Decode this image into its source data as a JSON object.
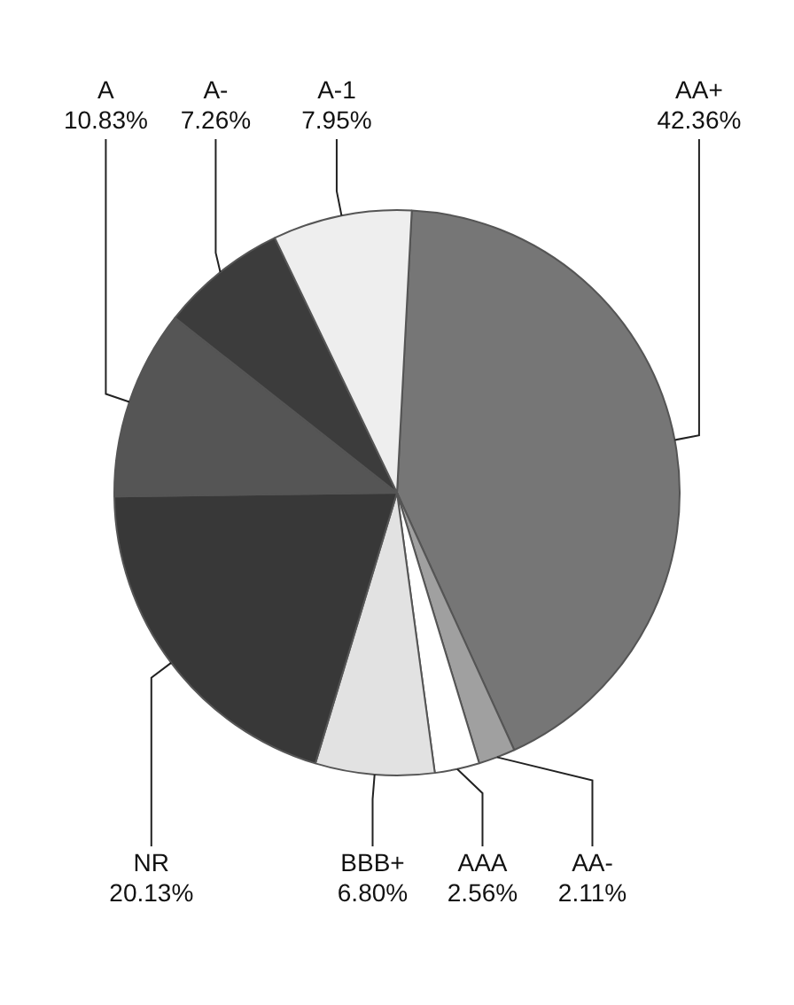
{
  "chart_data": {
    "type": "pie",
    "categories": [
      "AA+",
      "AA-",
      "AAA",
      "BBB+",
      "NR",
      "A",
      "A-",
      "A-1"
    ],
    "values": [
      42.36,
      2.11,
      2.56,
      6.8,
      20.13,
      10.83,
      7.26,
      7.95
    ],
    "value_labels": [
      "42.36%",
      "2.11%",
      "2.56%",
      "6.80%",
      "20.13%",
      "10.83%",
      "7.26%",
      "7.95%"
    ],
    "colors": [
      "#767676",
      "#a0a0a0",
      "#ffffff",
      "#e2e2e2",
      "#383838",
      "#555555",
      "#3c3c3c",
      "#eeeeee"
    ],
    "legend": false
  }
}
